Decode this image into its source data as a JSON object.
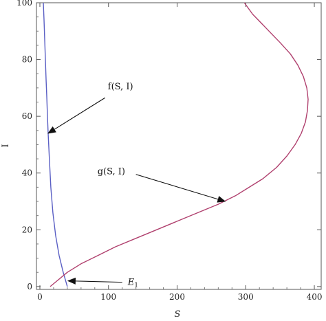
{
  "chart_data": {
    "type": "line",
    "title": "",
    "xlabel": "S",
    "ylabel": "I",
    "xlim": [
      -5,
      410
    ],
    "ylim": [
      -1,
      100
    ],
    "xticks": [
      0,
      100,
      200,
      300,
      400
    ],
    "yticks": [
      0,
      20,
      40,
      60,
      80,
      100
    ],
    "grid": false,
    "series": [
      {
        "color": "#5a5fc4",
        "x": [
          5,
          6,
          7,
          8,
          9,
          10,
          11,
          12,
          14,
          16,
          19,
          23,
          28,
          34,
          40
        ],
        "y": [
          100,
          94,
          87,
          80,
          73,
          67,
          60,
          54,
          44,
          35,
          26,
          18,
          11,
          5,
          0
        ]
      },
      {
        "color": "#b0406e",
        "x": [
          15,
          25,
          40,
          60,
          85,
          110,
          140,
          170,
          200,
          230,
          260,
          285,
          305,
          325,
          345,
          360,
          372,
          381,
          387,
          390,
          391,
          389,
          384,
          376,
          365,
          350,
          330,
          310,
          298
        ],
        "y": [
          0,
          2,
          5,
          8,
          11,
          14,
          17,
          20,
          23,
          26,
          29,
          32,
          35,
          38,
          42,
          46,
          50,
          54,
          58,
          62,
          66,
          70,
          74,
          78,
          82,
          86,
          91,
          96,
          100
        ]
      }
    ],
    "annotations": [
      {
        "text": "f(S, I)",
        "xy": [
          12,
          54
        ],
        "xytext": [
          95,
          67
        ]
      },
      {
        "text": "g(S, I)",
        "xy": [
          270,
          30
        ],
        "xytext": [
          140,
          40
        ]
      },
      {
        "text": "E",
        "sub": "1",
        "xy": [
          41,
          2
        ],
        "xytext": [
          120,
          2
        ]
      }
    ]
  }
}
